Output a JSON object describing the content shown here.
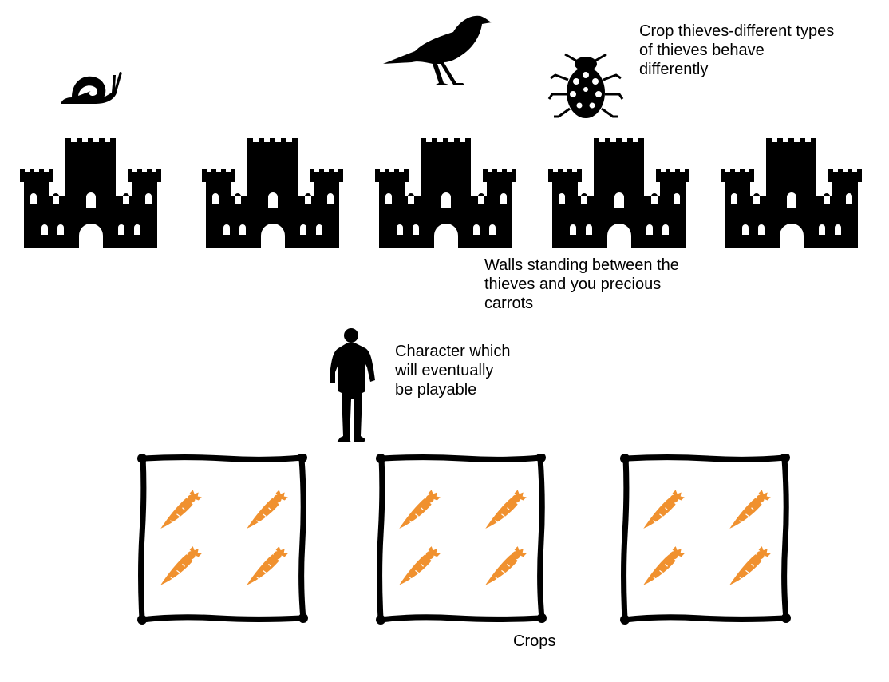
{
  "labels": {
    "thieves": "Crop thieves-different types\nof thieves behave\ndifferently",
    "walls": "Walls standing between the\nthieves and you precious\ncarrots",
    "character": "Character which\nwill eventually\nbe playable",
    "crops": "Crops"
  },
  "thieves": [
    "snail-icon",
    "crow-icon",
    "ladybug-icon"
  ],
  "walls": {
    "count": 5,
    "icon": "castle-icon"
  },
  "crop_plots": {
    "count": 3,
    "carrots_per_plot": 4,
    "icon": "carrot-icon"
  },
  "colors": {
    "silhouette": "#000000",
    "carrot": "#f0912f",
    "carrot_top": "#f0912f",
    "background": "#ffffff"
  }
}
